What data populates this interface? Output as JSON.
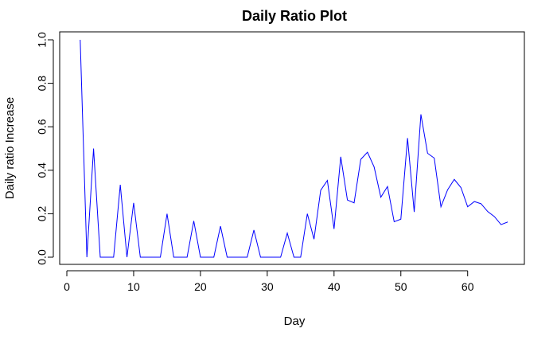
{
  "chart_data": {
    "type": "line",
    "title": "Daily Ratio Plot",
    "xlabel": "Day",
    "ylabel": "Daily ratio Increase",
    "xlim": [
      2,
      66
    ],
    "ylim": [
      0,
      1
    ],
    "x_ticks": [
      0,
      10,
      20,
      30,
      40,
      50,
      60
    ],
    "y_ticks": [
      0.0,
      0.2,
      0.4,
      0.6,
      0.8,
      1.0
    ],
    "x_tick_labels": [
      "0",
      "10",
      "20",
      "30",
      "40",
      "50",
      "60"
    ],
    "y_tick_labels": [
      "0.0",
      "0.2",
      "0.4",
      "0.6",
      "0.8",
      "1.0"
    ],
    "grid": false,
    "series": [
      {
        "color": "#0000ff",
        "x": [
          2,
          3,
          4,
          5,
          6,
          7,
          8,
          9,
          10,
          11,
          12,
          13,
          14,
          15,
          16,
          17,
          18,
          19,
          20,
          21,
          22,
          23,
          24,
          25,
          26,
          27,
          28,
          29,
          30,
          31,
          32,
          33,
          34,
          35,
          36,
          37,
          38,
          39,
          40,
          41,
          42,
          43,
          44,
          45,
          46,
          47,
          48,
          49,
          50,
          51,
          52,
          53,
          54,
          55,
          56,
          57,
          58,
          59,
          60,
          61,
          62,
          63,
          64,
          65,
          66
        ],
        "y": [
          1.0,
          0.0,
          0.5,
          0.0,
          0.0,
          0.0,
          0.333,
          0.0,
          0.25,
          0.0,
          0.0,
          0.0,
          0.0,
          0.2,
          0.0,
          0.0,
          0.0,
          0.167,
          0.0,
          0.0,
          0.0,
          0.143,
          0.0,
          0.0,
          0.0,
          0.0,
          0.125,
          0.0,
          0.0,
          0.0,
          0.0,
          0.111,
          0.0,
          0.0,
          0.2,
          0.083,
          0.308,
          0.353,
          0.13,
          0.462,
          0.263,
          0.25,
          0.45,
          0.483,
          0.415,
          0.276,
          0.325,
          0.163,
          0.175,
          0.548,
          0.208,
          0.657,
          0.478,
          0.456,
          0.232,
          0.31,
          0.358,
          0.32,
          0.232,
          0.256,
          0.246,
          0.21,
          0.187,
          0.15,
          0.162
        ]
      }
    ]
  }
}
